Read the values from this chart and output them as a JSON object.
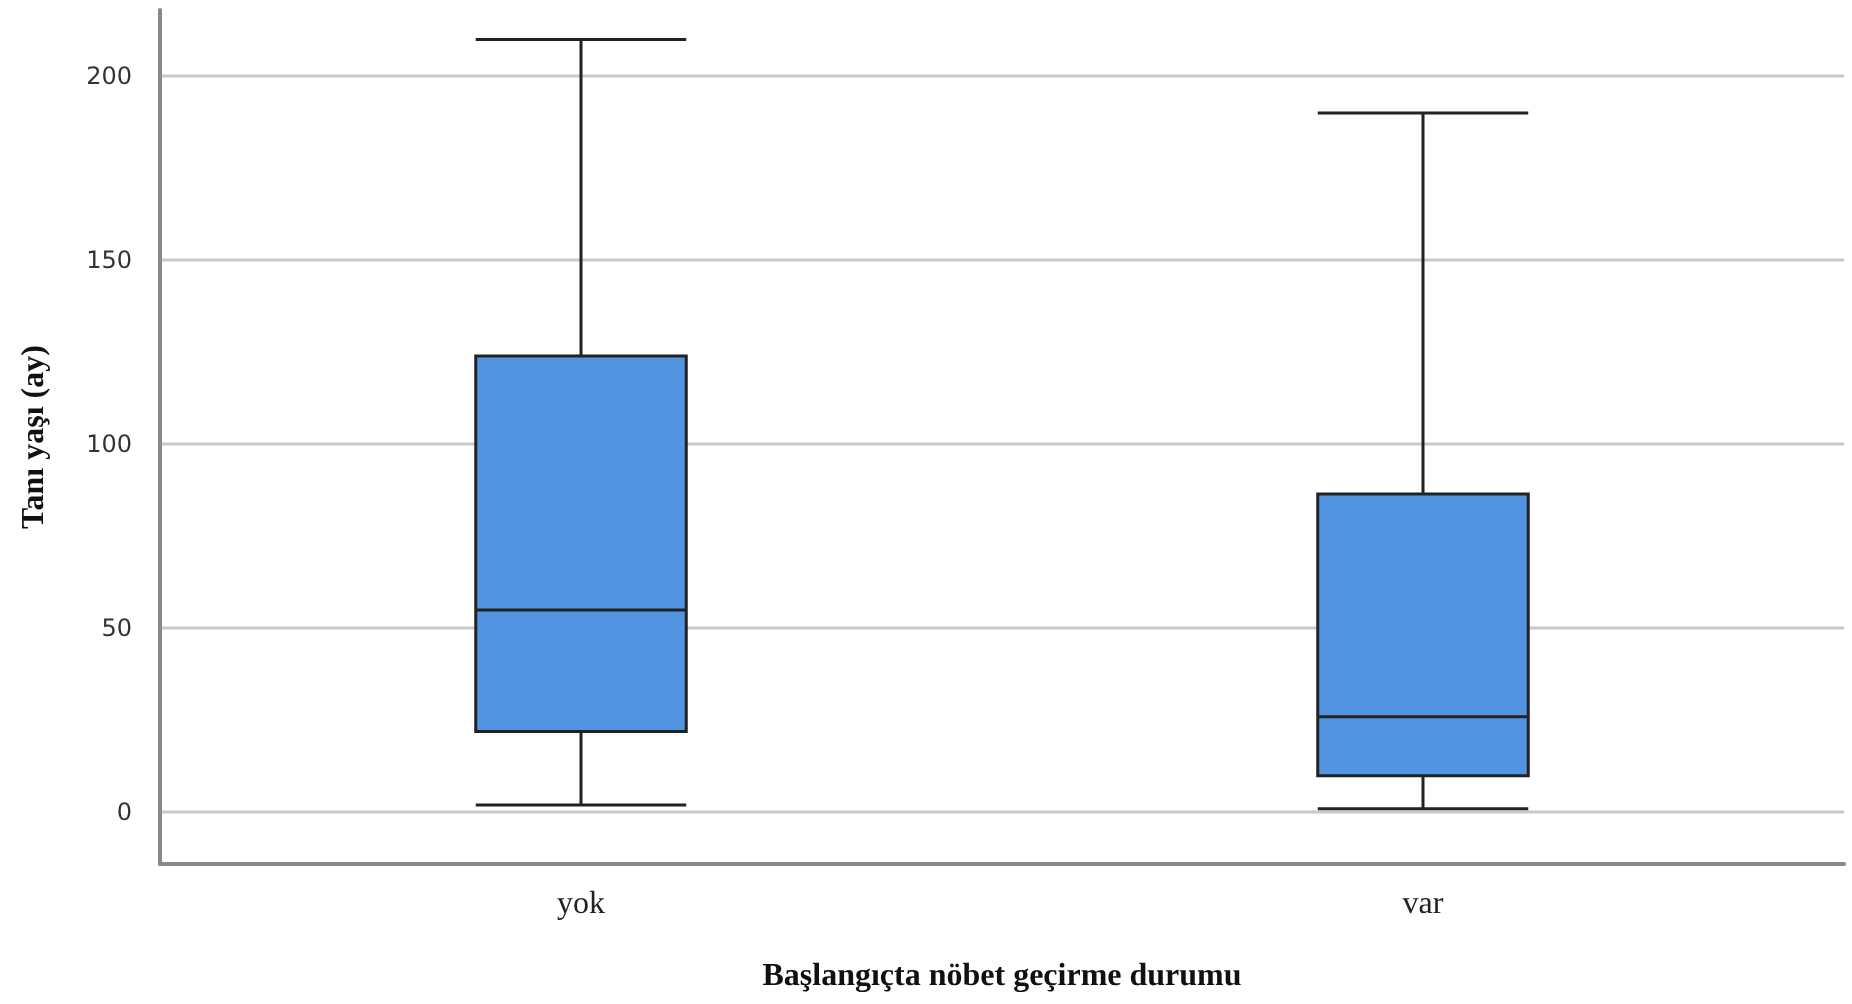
{
  "chart_data": {
    "type": "box",
    "xlabel": "Başlangıçta nöbet geçirme durumu",
    "ylabel": "Tanı yaşı (ay)",
    "categories": [
      "yok",
      "var"
    ],
    "series": [
      {
        "color": "#5294e2",
        "boxes": [
          {
            "low": 2,
            "q1": 22,
            "median": 55,
            "q3": 124,
            "high": 210
          },
          {
            "low": 1,
            "q1": 10,
            "median": 26,
            "q3": 86.5,
            "high": 190
          }
        ]
      }
    ],
    "ylim": [
      -14,
      218
    ],
    "yticks": [
      0,
      50,
      100,
      150,
      200
    ],
    "grid": "y"
  }
}
